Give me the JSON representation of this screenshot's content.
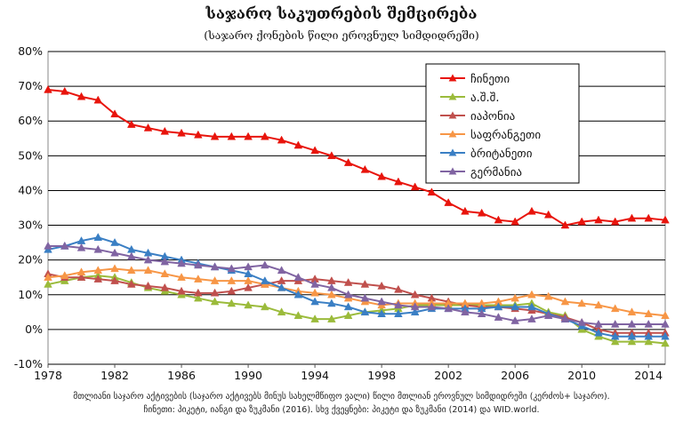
{
  "title": "საჯარო საკუთრების შემცირება",
  "subtitle": "(საჯარო ქონების წილი ეროვნულ სიმდიდრეში)",
  "footnote_line1": "მთლიანი საჯარო აქტივების (საჯარო აქტივებს მინუს სახელმწიფო ვალი) წილი მთლიან ეროვნულ სიმდიდრეში (კერძოს+ საჯარო).",
  "footnote_line2": "ჩინეთი: პიკეტი, იანგი და ზუკმანი (2016). სხვ ქვეყნები: პიკეტი და ზუკმანი (2014) და WID.world.",
  "chart_data": {
    "type": "line",
    "xlim": [
      1978,
      2015
    ],
    "ylim": [
      -10,
      80
    ],
    "x_ticks": [
      1978,
      1982,
      1986,
      1990,
      1994,
      1998,
      2002,
      2006,
      2010,
      2014
    ],
    "y_ticks": [
      "-10%",
      "0%",
      "10%",
      "20%",
      "30%",
      "40%",
      "50%",
      "60%",
      "70%",
      "80%"
    ],
    "grid": "horizontal",
    "legend_position": "top-right",
    "series": [
      {
        "name": "ჩინეთი",
        "color": "#e8140c",
        "marker": "triangle",
        "points": [
          [
            1978,
            69
          ],
          [
            1979,
            68.5
          ],
          [
            1980,
            67
          ],
          [
            1981,
            66
          ],
          [
            1982,
            62
          ],
          [
            1983,
            59
          ],
          [
            1984,
            58
          ],
          [
            1985,
            57
          ],
          [
            1986,
            56.5
          ],
          [
            1987,
            56
          ],
          [
            1988,
            55.5
          ],
          [
            1989,
            55.5
          ],
          [
            1990,
            55.5
          ],
          [
            1991,
            55.5
          ],
          [
            1992,
            54.5
          ],
          [
            1993,
            53
          ],
          [
            1994,
            51.5
          ],
          [
            1995,
            50
          ],
          [
            1996,
            48
          ],
          [
            1997,
            46
          ],
          [
            1998,
            44
          ],
          [
            1999,
            42.5
          ],
          [
            2000,
            41
          ],
          [
            2001,
            39.5
          ],
          [
            2002,
            36.5
          ],
          [
            2003,
            34
          ],
          [
            2004,
            33.5
          ],
          [
            2005,
            31.5
          ],
          [
            2006,
            31
          ],
          [
            2007,
            34
          ],
          [
            2008,
            33
          ],
          [
            2009,
            30
          ],
          [
            2010,
            31
          ],
          [
            2011,
            31.5
          ],
          [
            2012,
            31
          ],
          [
            2013,
            32
          ],
          [
            2014,
            32
          ],
          [
            2015,
            31.5
          ]
        ]
      },
      {
        "name": "ა.შ.შ.",
        "color": "#9bbb3b",
        "marker": "triangle",
        "points": [
          [
            1978,
            13
          ],
          [
            1979,
            14
          ],
          [
            1980,
            15
          ],
          [
            1981,
            15.5
          ],
          [
            1982,
            15
          ],
          [
            1983,
            13.5
          ],
          [
            1984,
            12
          ],
          [
            1985,
            11
          ],
          [
            1986,
            10
          ],
          [
            1987,
            9
          ],
          [
            1988,
            8
          ],
          [
            1989,
            7.5
          ],
          [
            1990,
            7
          ],
          [
            1991,
            6.5
          ],
          [
            1992,
            5
          ],
          [
            1993,
            4
          ],
          [
            1994,
            3
          ],
          [
            1995,
            3
          ],
          [
            1996,
            4
          ],
          [
            1997,
            5
          ],
          [
            1998,
            5.5
          ],
          [
            1999,
            6
          ],
          [
            2000,
            7
          ],
          [
            2001,
            7
          ],
          [
            2002,
            7
          ],
          [
            2003,
            7
          ],
          [
            2004,
            7
          ],
          [
            2005,
            7
          ],
          [
            2006,
            7
          ],
          [
            2007,
            7.5
          ],
          [
            2008,
            5
          ],
          [
            2009,
            4
          ],
          [
            2010,
            0
          ],
          [
            2011,
            -2
          ],
          [
            2012,
            -3.5
          ],
          [
            2013,
            -3.5
          ],
          [
            2014,
            -3.5
          ],
          [
            2015,
            -4
          ]
        ]
      },
      {
        "name": "იაპონია",
        "color": "#c0504d",
        "marker": "triangle",
        "points": [
          [
            1978,
            16
          ],
          [
            1979,
            15
          ],
          [
            1980,
            15
          ],
          [
            1981,
            14.5
          ],
          [
            1982,
            14
          ],
          [
            1983,
            13
          ],
          [
            1984,
            12.5
          ],
          [
            1985,
            12
          ],
          [
            1986,
            11
          ],
          [
            1987,
            10.5
          ],
          [
            1988,
            10.5
          ],
          [
            1989,
            11
          ],
          [
            1990,
            12
          ],
          [
            1991,
            13
          ],
          [
            1992,
            14
          ],
          [
            1993,
            14
          ],
          [
            1994,
            14.5
          ],
          [
            1995,
            14
          ],
          [
            1996,
            13.5
          ],
          [
            1997,
            13
          ],
          [
            1998,
            12.5
          ],
          [
            1999,
            11.5
          ],
          [
            2000,
            10
          ],
          [
            2001,
            9
          ],
          [
            2002,
            8
          ],
          [
            2003,
            7
          ],
          [
            2004,
            6.5
          ],
          [
            2005,
            6.5
          ],
          [
            2006,
            6
          ],
          [
            2007,
            5.5
          ],
          [
            2008,
            4.5
          ],
          [
            2009,
            3.5
          ],
          [
            2010,
            2
          ],
          [
            2011,
            0
          ],
          [
            2012,
            -1
          ],
          [
            2013,
            -1
          ],
          [
            2014,
            -1
          ],
          [
            2015,
            -1
          ]
        ]
      },
      {
        "name": "საფრანგეთი",
        "color": "#f79646",
        "marker": "triangle",
        "points": [
          [
            1978,
            15
          ],
          [
            1979,
            15.5
          ],
          [
            1980,
            16.5
          ],
          [
            1981,
            17
          ],
          [
            1982,
            17.5
          ],
          [
            1983,
            17
          ],
          [
            1984,
            17
          ],
          [
            1985,
            16
          ],
          [
            1986,
            15
          ],
          [
            1987,
            14.5
          ],
          [
            1988,
            14
          ],
          [
            1989,
            14
          ],
          [
            1990,
            14
          ],
          [
            1991,
            13
          ],
          [
            1992,
            12
          ],
          [
            1993,
            11
          ],
          [
            1994,
            10.5
          ],
          [
            1995,
            10
          ],
          [
            1996,
            9
          ],
          [
            1997,
            8
          ],
          [
            1998,
            7
          ],
          [
            1999,
            7.5
          ],
          [
            2000,
            7.5
          ],
          [
            2001,
            7.5
          ],
          [
            2002,
            7.5
          ],
          [
            2003,
            7.5
          ],
          [
            2004,
            7.5
          ],
          [
            2005,
            8
          ],
          [
            2006,
            9
          ],
          [
            2007,
            10
          ],
          [
            2008,
            9.5
          ],
          [
            2009,
            8
          ],
          [
            2010,
            7.5
          ],
          [
            2011,
            7
          ],
          [
            2012,
            6
          ],
          [
            2013,
            5
          ],
          [
            2014,
            4.5
          ],
          [
            2015,
            4
          ]
        ]
      },
      {
        "name": "ბრიტანეთი",
        "color": "#3a7fc4",
        "marker": "triangle",
        "points": [
          [
            1978,
            23
          ],
          [
            1979,
            24
          ],
          [
            1980,
            25.5
          ],
          [
            1981,
            26.5
          ],
          [
            1982,
            25
          ],
          [
            1983,
            23
          ],
          [
            1984,
            22
          ],
          [
            1985,
            21
          ],
          [
            1986,
            20
          ],
          [
            1987,
            19
          ],
          [
            1988,
            18
          ],
          [
            1989,
            17
          ],
          [
            1990,
            16
          ],
          [
            1991,
            14
          ],
          [
            1992,
            12
          ],
          [
            1993,
            10
          ],
          [
            1994,
            8
          ],
          [
            1995,
            7.5
          ],
          [
            1996,
            6.5
          ],
          [
            1997,
            5
          ],
          [
            1998,
            4.5
          ],
          [
            1999,
            4.5
          ],
          [
            2000,
            5
          ],
          [
            2001,
            6
          ],
          [
            2002,
            6
          ],
          [
            2003,
            6
          ],
          [
            2004,
            6
          ],
          [
            2005,
            6.5
          ],
          [
            2006,
            6.5
          ],
          [
            2007,
            6.5
          ],
          [
            2008,
            4.5
          ],
          [
            2009,
            3
          ],
          [
            2010,
            1
          ],
          [
            2011,
            -1
          ],
          [
            2012,
            -2
          ],
          [
            2013,
            -2
          ],
          [
            2014,
            -2
          ],
          [
            2015,
            -2
          ]
        ]
      },
      {
        "name": "გერმანია",
        "color": "#8064a2",
        "marker": "triangle",
        "points": [
          [
            1978,
            24
          ],
          [
            1979,
            24
          ],
          [
            1980,
            23.5
          ],
          [
            1981,
            23
          ],
          [
            1982,
            22
          ],
          [
            1983,
            21
          ],
          [
            1984,
            20
          ],
          [
            1985,
            19.5
          ],
          [
            1986,
            19
          ],
          [
            1987,
            18.5
          ],
          [
            1988,
            18
          ],
          [
            1989,
            17.5
          ],
          [
            1990,
            18
          ],
          [
            1991,
            18.5
          ],
          [
            1992,
            17
          ],
          [
            1993,
            15
          ],
          [
            1994,
            13
          ],
          [
            1995,
            12
          ],
          [
            1996,
            10
          ],
          [
            1997,
            9
          ],
          [
            1998,
            8
          ],
          [
            1999,
            7
          ],
          [
            2000,
            6.5
          ],
          [
            2001,
            6.5
          ],
          [
            2002,
            6
          ],
          [
            2003,
            5
          ],
          [
            2004,
            4.5
          ],
          [
            2005,
            3.5
          ],
          [
            2006,
            2.5
          ],
          [
            2007,
            3
          ],
          [
            2008,
            4
          ],
          [
            2009,
            3
          ],
          [
            2010,
            2
          ],
          [
            2011,
            1.5
          ],
          [
            2012,
            1.5
          ],
          [
            2013,
            1.5
          ],
          [
            2014,
            1.5
          ],
          [
            2015,
            1.5
          ]
        ]
      }
    ]
  }
}
